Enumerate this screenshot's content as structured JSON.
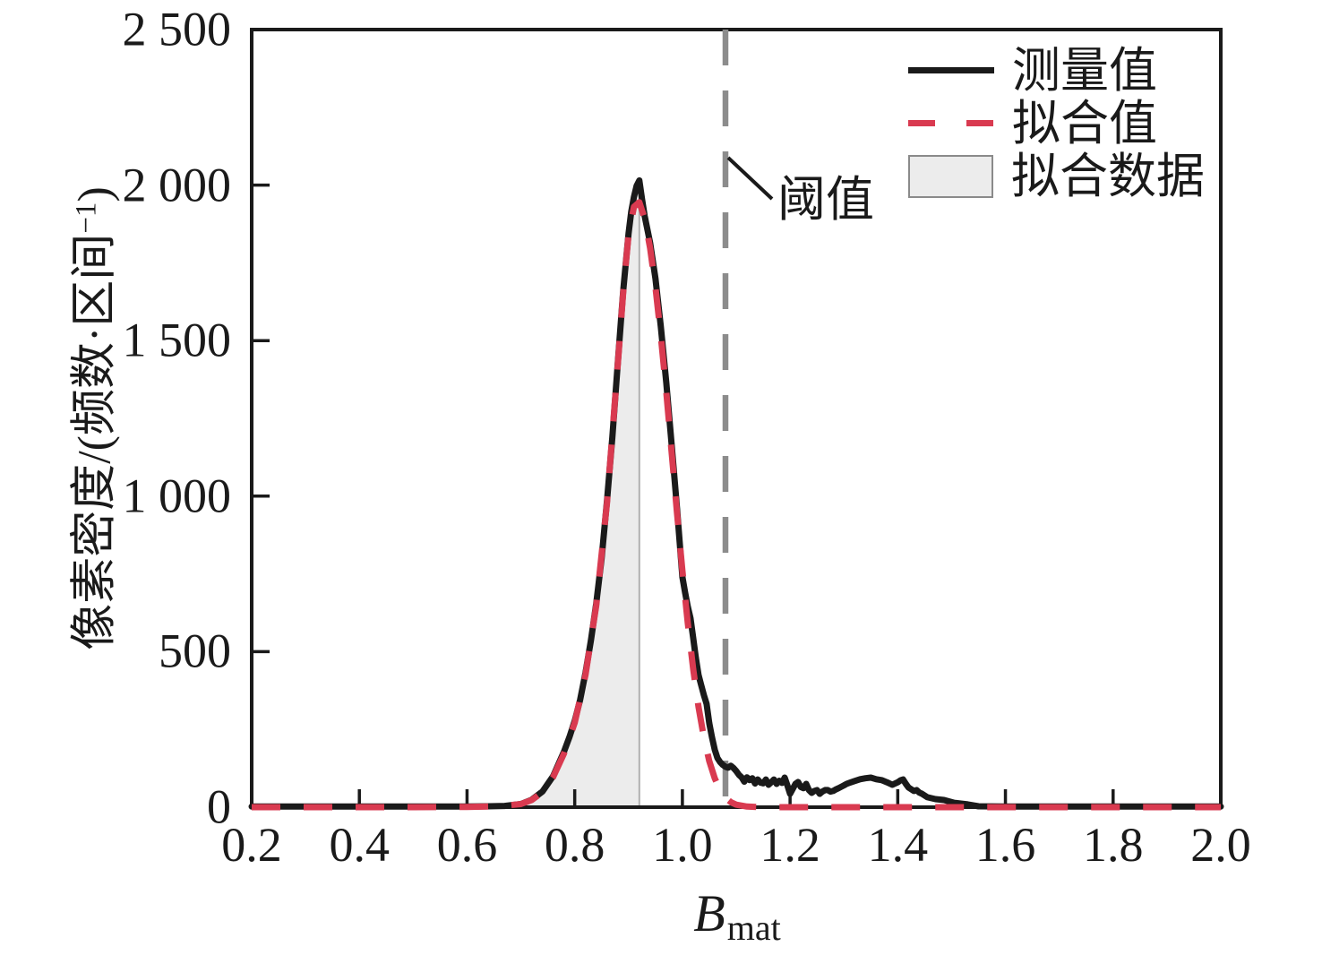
{
  "figure": {
    "background": "#ffffff",
    "text_color": "#1a1a1a"
  },
  "chart_data": {
    "type": "line",
    "title": "",
    "xlabel": {
      "base": "B",
      "subscript": "mat"
    },
    "ylabel": {
      "prefix": "像素密度/(频数·区间",
      "superscript": "−1",
      "suffix": ")"
    },
    "x_range": [
      0.2,
      2.0
    ],
    "y_range": [
      0,
      2500
    ],
    "grid": false,
    "legend_position": "top-right-inside",
    "x_ticks": [
      {
        "value": 0.2,
        "label": "0.2"
      },
      {
        "value": 0.4,
        "label": "0.4"
      },
      {
        "value": 0.6,
        "label": "0.6"
      },
      {
        "value": 0.8,
        "label": "0.8"
      },
      {
        "value": 1.0,
        "label": "1.0"
      },
      {
        "value": 1.2,
        "label": "1.2"
      },
      {
        "value": 1.4,
        "label": "1.4"
      },
      {
        "value": 1.6,
        "label": "1.6"
      },
      {
        "value": 1.8,
        "label": "1.8"
      },
      {
        "value": 2.0,
        "label": "2.0"
      }
    ],
    "y_ticks": [
      {
        "value": 0,
        "label": "0"
      },
      {
        "value": 500,
        "label": "500"
      },
      {
        "value": 1000,
        "label": "1 000"
      },
      {
        "value": 1500,
        "label": "1 500"
      },
      {
        "value": 2000,
        "label": "2 000"
      },
      {
        "value": 2500,
        "label": "2 500"
      }
    ],
    "threshold": {
      "value": 1.08,
      "label": "阈值",
      "color": "#8c8c8c"
    },
    "legend": [
      {
        "label": "测量值",
        "marker": "solid-line",
        "color": "#1a1a1a"
      },
      {
        "label": "拟合值",
        "marker": "dashed-line",
        "color": "#d93a50"
      },
      {
        "label": "拟合数据",
        "marker": "filled-box",
        "fill": "#ececec",
        "edge": "#8a8a8a"
      }
    ],
    "series": [
      {
        "name": "测量值",
        "style": "solid",
        "color": "#1a1a1a",
        "points": [
          [
            0.2,
            2
          ],
          [
            0.3,
            2
          ],
          [
            0.4,
            2
          ],
          [
            0.5,
            2
          ],
          [
            0.6,
            2
          ],
          [
            0.64,
            3
          ],
          [
            0.67,
            4
          ],
          [
            0.7,
            10
          ],
          [
            0.72,
            24
          ],
          [
            0.74,
            50
          ],
          [
            0.76,
            100
          ],
          [
            0.78,
            178
          ],
          [
            0.79,
            225
          ],
          [
            0.8,
            278
          ],
          [
            0.81,
            345
          ],
          [
            0.82,
            432
          ],
          [
            0.83,
            535
          ],
          [
            0.84,
            655
          ],
          [
            0.85,
            800
          ],
          [
            0.86,
            985
          ],
          [
            0.87,
            1190
          ],
          [
            0.88,
            1430
          ],
          [
            0.89,
            1660
          ],
          [
            0.9,
            1845
          ],
          [
            0.905,
            1915
          ],
          [
            0.91,
            1962
          ],
          [
            0.915,
            1998
          ],
          [
            0.92,
            2015
          ],
          [
            0.925,
            1955
          ],
          [
            0.93,
            1900
          ],
          [
            0.94,
            1815
          ],
          [
            0.95,
            1700
          ],
          [
            0.96,
            1545
          ],
          [
            0.97,
            1365
          ],
          [
            0.98,
            1165
          ],
          [
            0.99,
            960
          ],
          [
            0.995,
            850
          ],
          [
            1.0,
            740
          ],
          [
            1.005,
            690
          ],
          [
            1.01,
            645
          ],
          [
            1.015,
            608
          ],
          [
            1.02,
            545
          ],
          [
            1.025,
            480
          ],
          [
            1.03,
            425
          ],
          [
            1.035,
            392
          ],
          [
            1.04,
            360
          ],
          [
            1.045,
            332
          ],
          [
            1.05,
            270
          ],
          [
            1.055,
            225
          ],
          [
            1.06,
            185
          ],
          [
            1.065,
            158
          ],
          [
            1.07,
            145
          ],
          [
            1.075,
            136
          ],
          [
            1.08,
            130
          ],
          [
            1.085,
            127
          ],
          [
            1.09,
            133
          ],
          [
            1.095,
            126
          ],
          [
            1.1,
            116
          ],
          [
            1.105,
            104
          ],
          [
            1.11,
            96
          ],
          [
            1.115,
            82
          ],
          [
            1.12,
            96
          ],
          [
            1.125,
            87
          ],
          [
            1.13,
            93
          ],
          [
            1.135,
            76
          ],
          [
            1.14,
            89
          ],
          [
            1.145,
            79
          ],
          [
            1.15,
            77
          ],
          [
            1.155,
            89
          ],
          [
            1.16,
            72
          ],
          [
            1.165,
            80
          ],
          [
            1.17,
            89
          ],
          [
            1.175,
            75
          ],
          [
            1.18,
            85
          ],
          [
            1.185,
            78
          ],
          [
            1.19,
            95
          ],
          [
            1.195,
            70
          ],
          [
            1.2,
            43
          ],
          [
            1.21,
            75
          ],
          [
            1.215,
            81
          ],
          [
            1.22,
            65
          ],
          [
            1.225,
            61
          ],
          [
            1.23,
            75
          ],
          [
            1.235,
            55
          ],
          [
            1.24,
            46
          ],
          [
            1.245,
            52
          ],
          [
            1.25,
            55
          ],
          [
            1.255,
            43
          ],
          [
            1.26,
            50
          ],
          [
            1.265,
            55
          ],
          [
            1.27,
            55
          ],
          [
            1.275,
            50
          ],
          [
            1.28,
            52
          ],
          [
            1.285,
            57
          ],
          [
            1.29,
            61
          ],
          [
            1.3,
            70
          ],
          [
            1.305,
            75
          ],
          [
            1.31,
            78
          ],
          [
            1.32,
            84
          ],
          [
            1.33,
            90
          ],
          [
            1.34,
            93
          ],
          [
            1.35,
            95
          ],
          [
            1.36,
            90
          ],
          [
            1.37,
            87
          ],
          [
            1.38,
            80
          ],
          [
            1.39,
            72
          ],
          [
            1.4,
            80
          ],
          [
            1.405,
            86
          ],
          [
            1.41,
            89
          ],
          [
            1.415,
            75
          ],
          [
            1.42,
            63
          ],
          [
            1.43,
            52
          ],
          [
            1.435,
            55
          ],
          [
            1.44,
            47
          ],
          [
            1.445,
            43
          ],
          [
            1.455,
            32
          ],
          [
            1.47,
            26
          ],
          [
            1.486,
            23
          ],
          [
            1.505,
            14
          ],
          [
            1.53,
            9
          ],
          [
            1.55,
            3
          ],
          [
            1.6,
            2
          ],
          [
            1.7,
            2
          ],
          [
            1.8,
            2
          ],
          [
            1.9,
            2
          ],
          [
            2.0,
            2
          ]
        ]
      },
      {
        "name": "拟合值",
        "style": "dashed",
        "color": "#d93a50",
        "points": [
          [
            0.2,
            0
          ],
          [
            0.3,
            0
          ],
          [
            0.4,
            0
          ],
          [
            0.5,
            0
          ],
          [
            0.6,
            1
          ],
          [
            0.64,
            2
          ],
          [
            0.67,
            5
          ],
          [
            0.7,
            10
          ],
          [
            0.72,
            23
          ],
          [
            0.74,
            48
          ],
          [
            0.76,
            97
          ],
          [
            0.78,
            172
          ],
          [
            0.8,
            272
          ],
          [
            0.82,
            425
          ],
          [
            0.84,
            648
          ],
          [
            0.86,
            978
          ],
          [
            0.88,
            1425
          ],
          [
            0.89,
            1655
          ],
          [
            0.9,
            1842
          ],
          [
            0.91,
            1930
          ],
          [
            0.92,
            1945
          ],
          [
            0.93,
            1892
          ],
          [
            0.94,
            1798
          ],
          [
            0.95,
            1672
          ],
          [
            0.96,
            1515
          ],
          [
            0.97,
            1335
          ],
          [
            0.98,
            1140
          ],
          [
            0.99,
            945
          ],
          [
            1.0,
            760
          ],
          [
            1.01,
            592
          ],
          [
            1.02,
            445
          ],
          [
            1.03,
            322
          ],
          [
            1.04,
            224
          ],
          [
            1.05,
            148
          ],
          [
            1.06,
            93
          ],
          [
            1.07,
            55
          ],
          [
            1.08,
            30
          ],
          [
            1.09,
            16
          ],
          [
            1.1,
            8
          ],
          [
            1.12,
            2
          ],
          [
            1.15,
            0
          ],
          [
            1.2,
            0
          ],
          [
            1.3,
            0
          ],
          [
            1.4,
            0
          ],
          [
            1.5,
            0
          ],
          [
            1.6,
            0
          ],
          [
            1.7,
            0
          ],
          [
            1.8,
            0
          ],
          [
            1.9,
            0
          ],
          [
            2.0,
            0
          ]
        ]
      }
    ],
    "shaded_region": {
      "label": "拟合数据",
      "follows": "测量值",
      "x_from": 0.66,
      "x_to": 0.92,
      "fill": "#ececec",
      "edge": "#b0b0b0"
    }
  }
}
